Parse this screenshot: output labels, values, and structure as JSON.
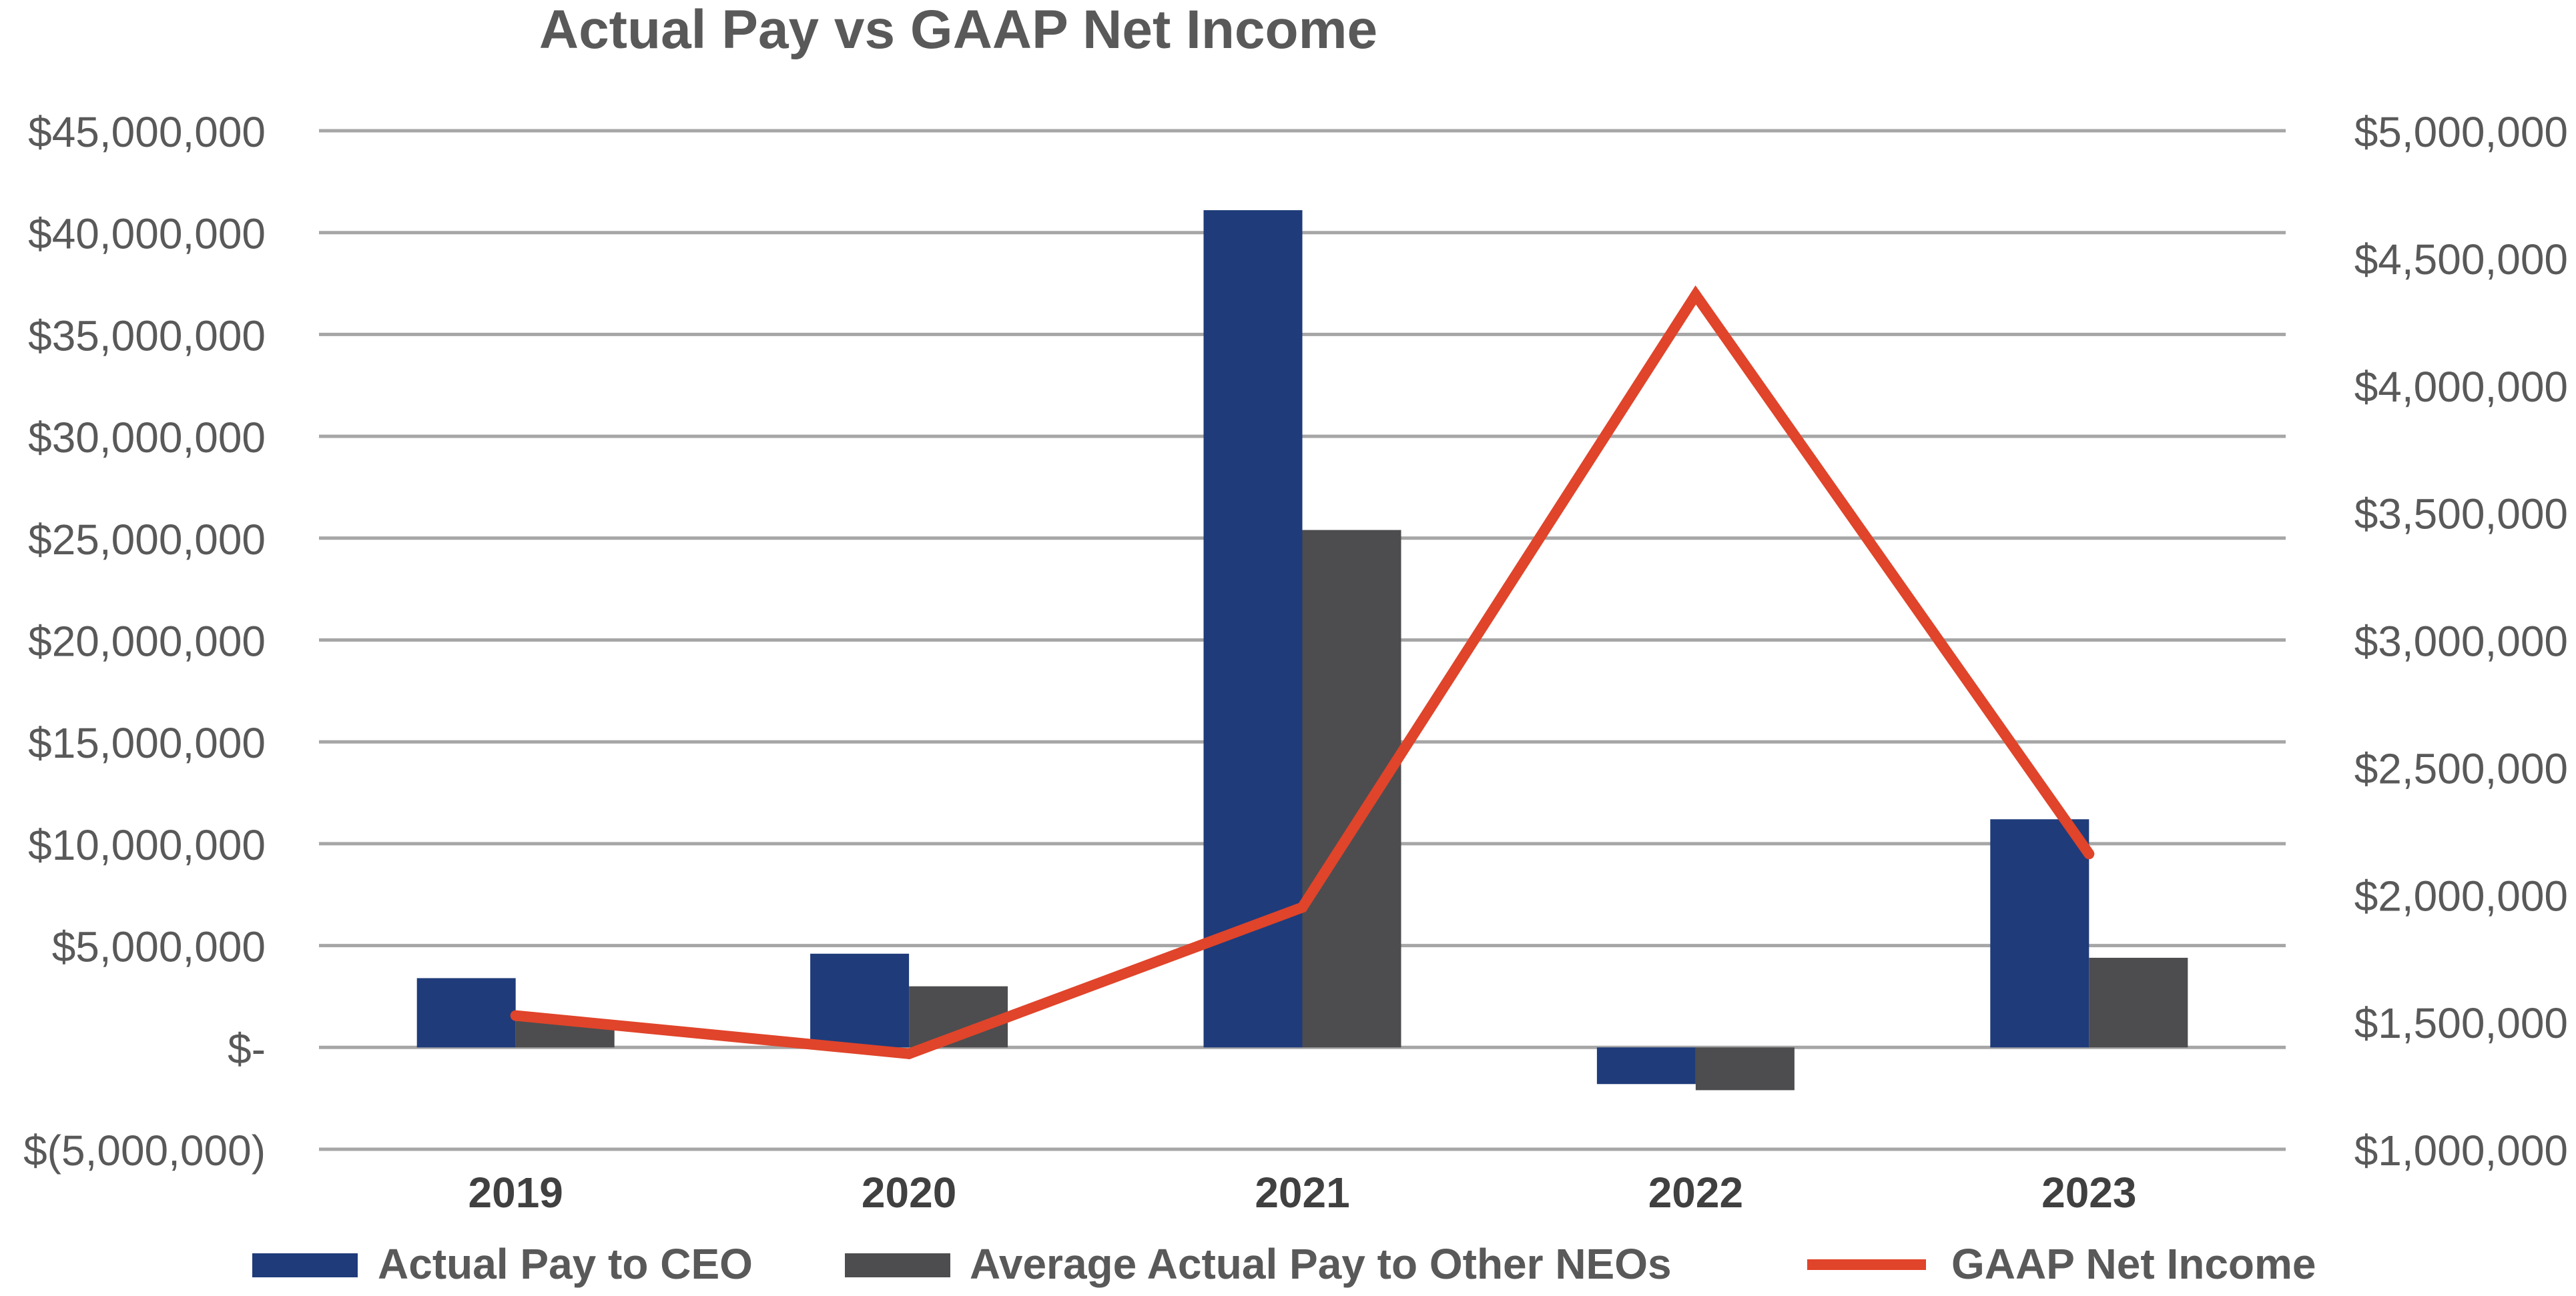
{
  "chart_data": {
    "type": "bar",
    "title": "Actual Pay vs GAAP Net Income",
    "categories": [
      "2019",
      "2020",
      "2021",
      "2022",
      "2023"
    ],
    "series": [
      {
        "name": "Actual Pay to CEO",
        "type": "bar",
        "axis": "left",
        "color": "#1F3B7A",
        "values": [
          3400000,
          4600000,
          41100000,
          -1800000,
          11200000
        ]
      },
      {
        "name": "Average Actual Pay to Other NEOs",
        "type": "bar",
        "axis": "left",
        "color": "#4D4D4F",
        "values": [
          1300000,
          3000000,
          25400000,
          -2100000,
          4400000
        ]
      },
      {
        "name": "GAAP Net Income",
        "type": "line",
        "axis": "right",
        "color": "#E0442A",
        "values": [
          1525000,
          1375000,
          1950000,
          4355000,
          2160000
        ]
      }
    ],
    "y_left": {
      "min": -5000000,
      "max": 45000000,
      "step": 5000000,
      "tick_labels": [
        "$(5,000,000)",
        "$-",
        "$5,000,000",
        "$10,000,000",
        "$15,000,000",
        "$20,000,000",
        "$25,000,000",
        "$30,000,000",
        "$35,000,000",
        "$40,000,000",
        "$45,000,000"
      ]
    },
    "y_right": {
      "min": 1000000,
      "max": 5000000,
      "step": 500000,
      "tick_labels": [
        "$1,000,000",
        "$1,500,000",
        "$2,000,000",
        "$2,500,000",
        "$3,000,000",
        "$3,500,000",
        "$4,000,000",
        "$4,500,000",
        "$5,000,000"
      ]
    },
    "grid": true,
    "legend_position": "bottom",
    "colors": {
      "grid": "#A6A6A6",
      "text": "#595959",
      "category_text": "#404040"
    }
  }
}
